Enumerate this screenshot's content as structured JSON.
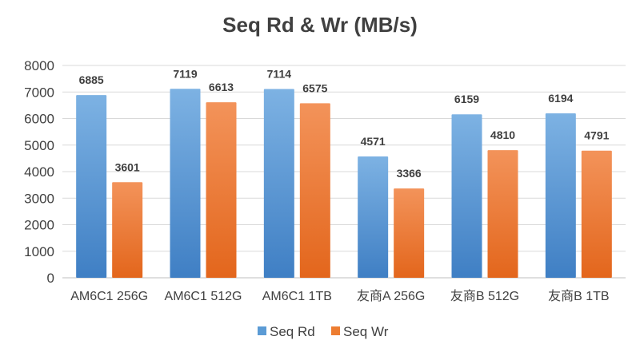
{
  "chart_data": {
    "type": "bar",
    "title": "Seq Rd & Wr (MB/s)",
    "xlabel": "",
    "ylabel": "",
    "ylim": [
      0,
      8000
    ],
    "yticks": [
      0,
      1000,
      2000,
      3000,
      4000,
      5000,
      6000,
      7000,
      8000
    ],
    "grid": true,
    "legend_position": "bottom",
    "categories": [
      "AM6C1 256G",
      "AM6C1 512G",
      "AM6C1 1TB",
      "友商A  256G",
      "友商B  512G",
      "友商B 1TB"
    ],
    "series": [
      {
        "name": "Seq Rd",
        "color": "#5B9BD5",
        "values": [
          6885,
          7119,
          7114,
          4571,
          6159,
          6194
        ]
      },
      {
        "name": "Seq Wr",
        "color": "#ED7D31",
        "values": [
          3601,
          6613,
          6575,
          3366,
          4810,
          4791
        ]
      }
    ]
  }
}
